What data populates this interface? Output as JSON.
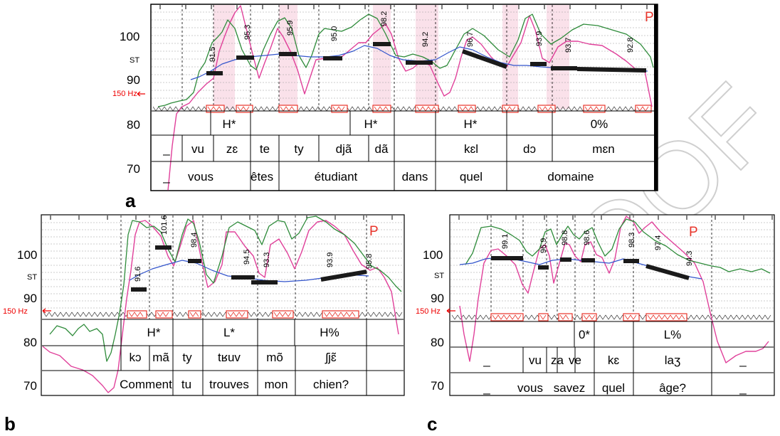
{
  "chart_data": [
    {
      "panel": "a",
      "type": "line",
      "ylabel": "ST",
      "yticks": [
        100,
        90,
        80,
        70
      ],
      "freq_marker": "150 Hz",
      "p_marker": "P",
      "values": [
        "91.5",
        "95.3",
        "95.9",
        "95.0",
        "98.2",
        "94.2",
        "96.7",
        "93.9",
        "93.7",
        "92.8",
        "92.4"
      ],
      "tiers": {
        "tones": [
          "H*",
          "H*",
          "H*",
          "0%"
        ],
        "syllables": [
          "_",
          "vu",
          "zɛ",
          "te",
          "ty",
          "djã",
          "dã",
          "kɛl",
          "dɔ",
          "mɛn"
        ],
        "words": [
          "_",
          "vous",
          "êtes",
          "étudiant",
          "dans",
          "quel",
          "domaine"
        ]
      }
    },
    {
      "panel": "b",
      "type": "line",
      "ylabel": "ST",
      "yticks": [
        100,
        90,
        80,
        70
      ],
      "freq_marker": "150 Hz",
      "p_marker": "P",
      "values": [
        "91.6",
        "101.6",
        "98.4",
        "94.5",
        "93.3",
        "93.9",
        "95.8"
      ],
      "tiers": {
        "tones": [
          "H*",
          "L*",
          "H%"
        ],
        "syllables": [
          "kɔ",
          "mã",
          "ty",
          "tʁuv",
          "mõ",
          "ʃjɛ̃"
        ],
        "words": [
          "Comment",
          "tu",
          "trouves",
          "mon",
          "chien?"
        ]
      }
    },
    {
      "panel": "c",
      "type": "line",
      "ylabel": "ST",
      "yticks": [
        100,
        90,
        80,
        70
      ],
      "freq_marker": "150 Hz",
      "p_marker": "P",
      "values": [
        "99.1",
        "96.9",
        "98.8",
        "98.6",
        "98.3",
        "97.4",
        "94.3"
      ],
      "tiers": {
        "tones": [
          "0*",
          "L%"
        ],
        "syllables": [
          "_",
          "vu",
          "za",
          "ve",
          "kɛ",
          "laʒ",
          "_"
        ],
        "words": [
          "_",
          "vous",
          "savez",
          "quel",
          "âge?",
          "_"
        ]
      }
    }
  ],
  "watermark": "PROOF",
  "colors": {
    "f0_green": "#2e8b3a",
    "f0_magenta": "#e0409a",
    "stylized": "#1a1a1a",
    "smoothed": "#3355cc",
    "marker_red": "#e8342a",
    "pink_bg": "#f6c9d8"
  }
}
